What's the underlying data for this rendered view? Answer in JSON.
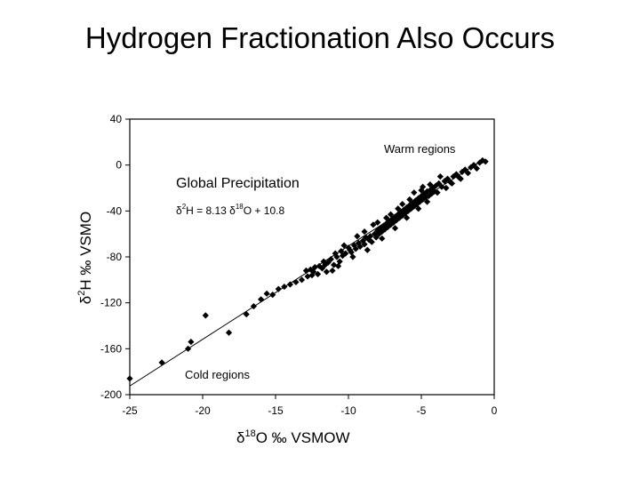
{
  "slide": {
    "title": "Hydrogen Fractionation Also Occurs"
  },
  "chart_data": {
    "type": "scatter",
    "title": "",
    "xlabel": "δ18O ‰ VSMOW",
    "ylabel": "δ2H ‰ VSMO",
    "xlim": [
      -25,
      0
    ],
    "ylim": [
      -200,
      40
    ],
    "xticks": [
      -25,
      -20,
      -15,
      -10,
      -5,
      0
    ],
    "yticks": [
      40,
      0,
      -40,
      -80,
      -120,
      -160,
      -200
    ],
    "grid": false,
    "legend": "none",
    "fit_line": {
      "label_title": "Global Precipitation",
      "equation": "δ2H = 8.13 δ18O + 10.8",
      "slope": 8.13,
      "intercept": 10.8
    },
    "annotations": {
      "warm": "Warm regions",
      "cold": "Cold regions"
    },
    "series": [
      {
        "marker": "diamond",
        "color": "#000000",
        "points": [
          [
            -25.0,
            -186
          ],
          [
            -22.8,
            -172
          ],
          [
            -21.0,
            -160
          ],
          [
            -20.8,
            -154
          ],
          [
            -19.8,
            -131
          ],
          [
            -18.2,
            -146
          ],
          [
            -17.0,
            -130
          ],
          [
            -16.5,
            -123
          ],
          [
            -16.0,
            -117
          ],
          [
            -15.6,
            -112
          ],
          [
            -15.2,
            -113
          ],
          [
            -14.8,
            -108
          ],
          [
            -14.4,
            -106
          ],
          [
            -14.0,
            -104
          ],
          [
            -13.6,
            -102
          ],
          [
            -13.2,
            -100
          ],
          [
            -12.8,
            -97
          ],
          [
            -12.6,
            -91
          ],
          [
            -12.4,
            -93
          ],
          [
            -12.3,
            -89
          ],
          [
            -12.1,
            -95
          ],
          [
            -12.0,
            -88
          ],
          [
            -11.8,
            -90
          ],
          [
            -11.6,
            -87
          ],
          [
            -11.5,
            -93
          ],
          [
            -11.4,
            -85
          ],
          [
            -11.2,
            -82
          ],
          [
            -11.0,
            -87
          ],
          [
            -10.9,
            -77
          ],
          [
            -10.8,
            -80
          ],
          [
            -10.6,
            -84
          ],
          [
            -10.5,
            -75
          ],
          [
            -10.4,
            -79
          ],
          [
            -10.2,
            -77
          ],
          [
            -10.0,
            -72
          ],
          [
            -9.9,
            -74
          ],
          [
            -9.8,
            -76
          ],
          [
            -9.6,
            -70
          ],
          [
            -9.5,
            -73
          ],
          [
            -9.3,
            -68
          ],
          [
            -9.2,
            -71
          ],
          [
            -9.0,
            -66
          ],
          [
            -8.9,
            -69
          ],
          [
            -8.8,
            -63
          ],
          [
            -8.6,
            -65
          ],
          [
            -8.5,
            -62
          ],
          [
            -8.4,
            -67
          ],
          [
            -8.2,
            -60
          ],
          [
            -8.1,
            -63
          ],
          [
            -8.0,
            -57
          ],
          [
            -7.9,
            -60
          ],
          [
            -7.8,
            -55
          ],
          [
            -7.7,
            -58
          ],
          [
            -7.6,
            -53
          ],
          [
            -7.5,
            -56
          ],
          [
            -7.4,
            -51
          ],
          [
            -7.3,
            -54
          ],
          [
            -7.2,
            -49
          ],
          [
            -7.1,
            -52
          ],
          [
            -7.0,
            -47
          ],
          [
            -6.9,
            -50
          ],
          [
            -6.8,
            -45
          ],
          [
            -6.7,
            -48
          ],
          [
            -6.6,
            -43
          ],
          [
            -6.5,
            -46
          ],
          [
            -6.4,
            -41
          ],
          [
            -6.3,
            -44
          ],
          [
            -6.2,
            -39
          ],
          [
            -6.1,
            -42
          ],
          [
            -6.0,
            -37
          ],
          [
            -5.9,
            -40
          ],
          [
            -5.8,
            -35
          ],
          [
            -5.7,
            -38
          ],
          [
            -5.6,
            -33
          ],
          [
            -5.5,
            -36
          ],
          [
            -5.4,
            -31
          ],
          [
            -5.3,
            -34
          ],
          [
            -5.2,
            -29
          ],
          [
            -5.1,
            -32
          ],
          [
            -5.0,
            -27
          ],
          [
            -4.9,
            -30
          ],
          [
            -4.8,
            -25
          ],
          [
            -4.7,
            -28
          ],
          [
            -4.6,
            -23
          ],
          [
            -4.5,
            -27
          ],
          [
            -4.4,
            -22
          ],
          [
            -4.3,
            -25
          ],
          [
            -4.2,
            -20
          ],
          [
            -4.1,
            -23
          ],
          [
            -4.0,
            -18
          ],
          [
            -3.8,
            -16
          ],
          [
            -3.6,
            -19
          ],
          [
            -3.4,
            -14
          ],
          [
            -3.2,
            -12
          ],
          [
            -3.0,
            -15
          ],
          [
            -2.8,
            -10
          ],
          [
            -2.6,
            -8
          ],
          [
            -2.4,
            -11
          ],
          [
            -2.2,
            -6
          ],
          [
            -2.0,
            -4
          ],
          [
            -1.8,
            -7
          ],
          [
            -1.6,
            -2
          ],
          [
            -1.4,
            0
          ],
          [
            -1.2,
            -3
          ],
          [
            -1.0,
            2
          ],
          [
            -0.8,
            4
          ],
          [
            -0.6,
            3
          ],
          [
            -9.4,
            -62
          ],
          [
            -8.3,
            -52
          ],
          [
            -7.4,
            -46
          ],
          [
            -6.6,
            -38
          ],
          [
            -5.8,
            -30
          ],
          [
            -5.0,
            -22
          ],
          [
            -4.4,
            -17
          ],
          [
            -3.7,
            -10
          ],
          [
            -10.3,
            -70
          ],
          [
            -11.7,
            -84
          ],
          [
            -12.9,
            -92
          ],
          [
            -8.7,
            -74
          ],
          [
            -7.7,
            -64
          ],
          [
            -6.8,
            -55
          ],
          [
            -6.0,
            -46
          ],
          [
            -5.2,
            -38
          ],
          [
            -4.6,
            -32
          ],
          [
            -3.9,
            -24
          ],
          [
            -3.3,
            -20
          ],
          [
            -2.9,
            -16
          ],
          [
            -2.3,
            -12
          ],
          [
            -9.7,
            -80
          ],
          [
            -10.7,
            -88
          ],
          [
            -5.5,
            -24
          ],
          [
            -4.9,
            -19
          ],
          [
            -6.3,
            -34
          ],
          [
            -7.1,
            -43
          ],
          [
            -8.0,
            -50
          ],
          [
            -8.9,
            -58
          ],
          [
            -11.1,
            -92
          ],
          [
            -12.5,
            -96
          ]
        ]
      }
    ]
  }
}
